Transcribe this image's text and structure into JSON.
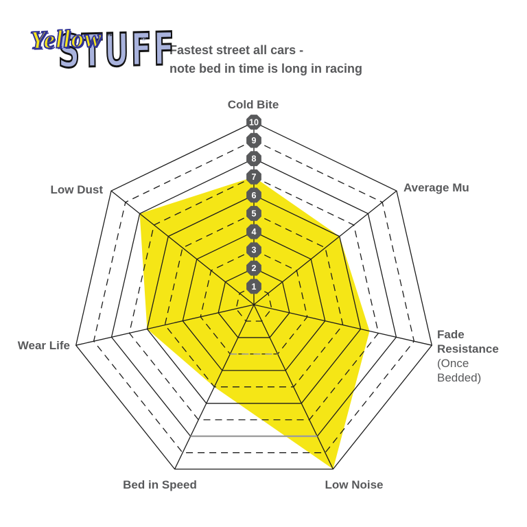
{
  "logo": {
    "word1": "Yellow",
    "trademark": "™",
    "word2": "STUFF",
    "registered": "®",
    "word1_color": "#f6e51c",
    "word2_color": "#a9b3dd"
  },
  "header": {
    "title_line1": "Fastest street all cars -",
    "title_line2": "note bed in time is long in racing"
  },
  "labels": {
    "cold_bite": "Cold Bite",
    "average_mu": "Average Mu",
    "fade_resistance": "Fade Resistance",
    "fade_resistance_sub": "(Once Bedded)",
    "low_noise": "Low Noise",
    "bed_in_speed": "Bed in Speed",
    "wear_life": "Wear Life",
    "low_dust": "Low Dust"
  },
  "chart_data": {
    "type": "radar",
    "categories": [
      "Cold Bite",
      "Average Mu",
      "Fade Resistance (Once Bedded)",
      "Low Noise",
      "Bed in Speed",
      "Wear Life",
      "Low Dust"
    ],
    "values": [
      7,
      6,
      6.5,
      10,
      5,
      6,
      8
    ],
    "scale_min": 1,
    "scale_max": 10,
    "scale_badges": [
      "10",
      "9",
      "8",
      "7",
      "6",
      "5",
      "4",
      "3",
      "2",
      "1"
    ],
    "rings": 10,
    "ring_style_note": "even rings solid, odd rings dashed",
    "fill_color": "#f5e616",
    "grid_color": "#1c1c1c",
    "badge_color": "#58595b",
    "badge_text_color": "#ffffff",
    "label_color": "#58595b",
    "special_edge_color": "#9c9c9c",
    "legend": "none",
    "title": "Fastest street all cars - note bed in time is long in racing"
  }
}
